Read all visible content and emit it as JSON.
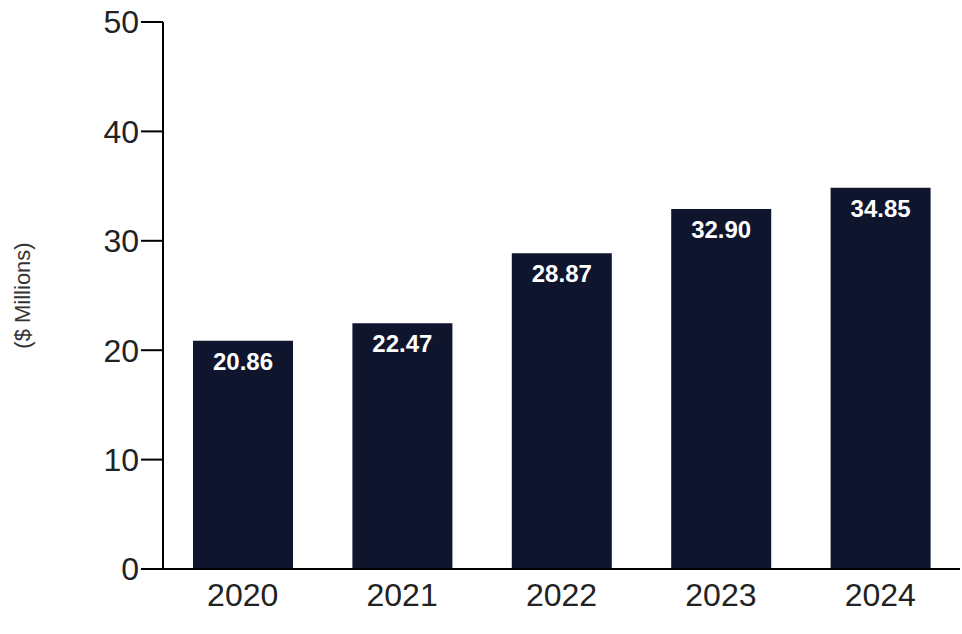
{
  "chart_data": {
    "type": "bar",
    "y_label": "($ Millions)",
    "categories": [
      "2020",
      "2021",
      "2022",
      "2023",
      "2024"
    ],
    "values": [
      20.86,
      22.47,
      28.87,
      32.9,
      34.85
    ],
    "value_labels": [
      "20.86",
      "22.47",
      "28.87",
      "32.90",
      "34.85"
    ],
    "color": "#10152e",
    "ylim": [
      0,
      50
    ],
    "yticks": [
      0,
      10,
      20,
      30,
      40,
      50
    ],
    "grid": false,
    "data_labels": true
  }
}
